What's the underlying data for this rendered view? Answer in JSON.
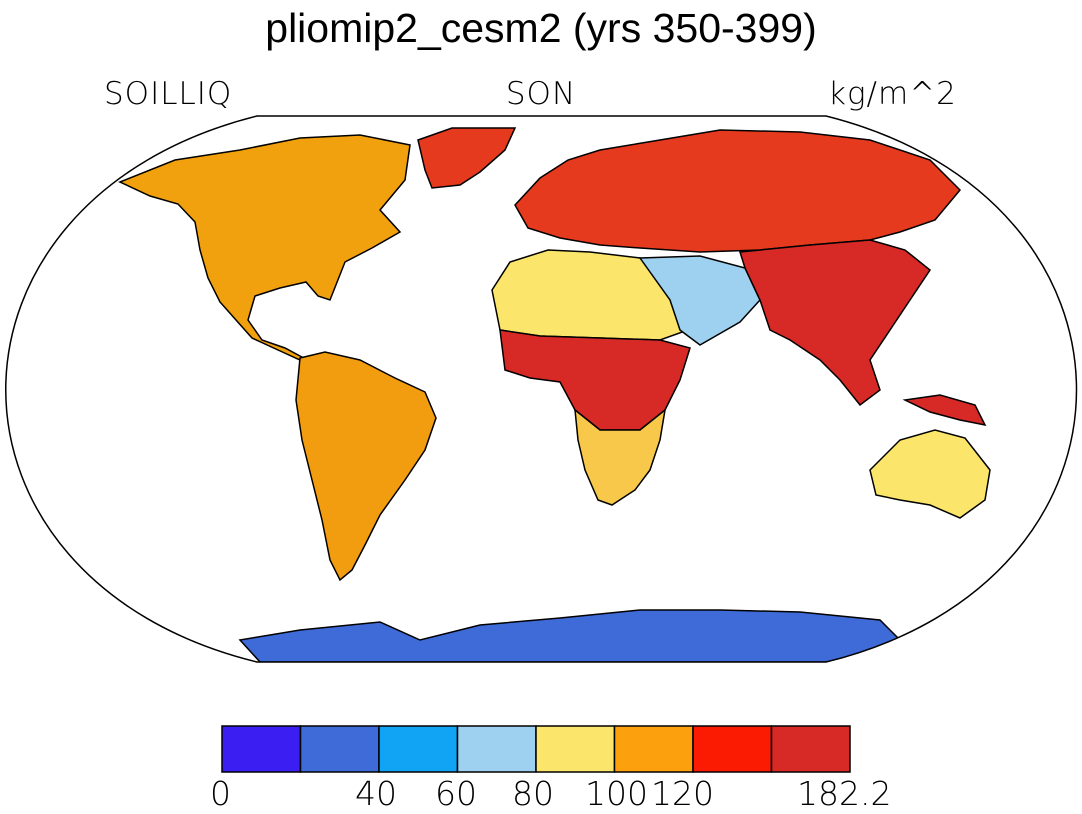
{
  "title": "pliomip2_cesm2 (yrs 350-399)",
  "variable": "SOILLIQ",
  "season": "SON",
  "units": "kg/m^2",
  "map": {
    "projection": "Robinson",
    "land_styles": {
      "greenland": "#e63a1f",
      "north_america": "#f2a10e",
      "south_america": "#f29c10",
      "europe_russia": "#e63a1f",
      "africa_north": "#fbe56a",
      "africa_central": "#d72a26",
      "africa_south": "#f7c84a",
      "middle_east": "#9dd1ef",
      "asia_south": "#d72a26",
      "australia": "#fbe56a",
      "antarctica": "#3f6bd8"
    }
  },
  "colorbar": {
    "colors": [
      "#3b1ef2",
      "#3f6bd8",
      "#11a4f5",
      "#9dd1ef",
      "#fbe56a",
      "#fda00d",
      "#fb1b02",
      "#d72a26"
    ],
    "labels": [
      "0",
      "40",
      "60",
      "80",
      "100",
      "120",
      "182.2"
    ]
  }
}
